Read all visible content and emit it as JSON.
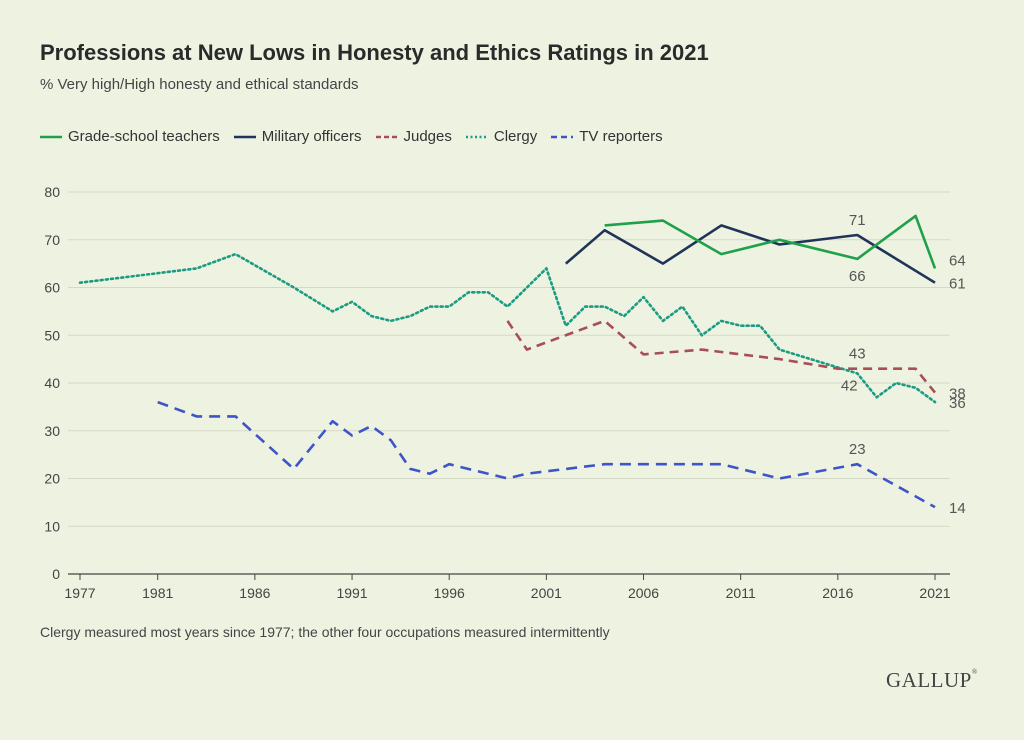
{
  "title": "Professions at New Lows in Honesty and Ethics Ratings in 2021",
  "subtitle": "% Very high/High honesty and ethical standards",
  "footnote": "Clergy measured most years since 1977; the other four occupations measured intermittently",
  "logo": "GALLUP",
  "logo_mark": "®",
  "chart_data": {
    "type": "line",
    "title": "Professions at New Lows in Honesty and Ethics Ratings in 2021",
    "xlabel": "",
    "ylabel": "",
    "xlim": [
      1977,
      2021
    ],
    "ylim": [
      0,
      80
    ],
    "y_ticks": [
      "0",
      "10",
      "20",
      "30",
      "40",
      "50",
      "60",
      "70",
      "80"
    ],
    "x_ticks": [
      "1977",
      "1981",
      "1986",
      "1991",
      "1996",
      "2001",
      "2006",
      "2011",
      "2016",
      "2021"
    ],
    "grid": "horizontal",
    "legend_position": "top-left",
    "series": [
      {
        "name": "Grade-school teachers",
        "color": "#1fa04a",
        "style": "solid",
        "points": [
          [
            2004,
            73
          ],
          [
            2007,
            74
          ],
          [
            2010,
            67
          ],
          [
            2013,
            70
          ],
          [
            2017,
            66
          ],
          [
            2020,
            75
          ],
          [
            2021,
            64
          ]
        ]
      },
      {
        "name": "Military officers",
        "color": "#1f3458",
        "style": "solid",
        "points": [
          [
            2002,
            65
          ],
          [
            2004,
            72
          ],
          [
            2007,
            65
          ],
          [
            2010,
            73
          ],
          [
            2013,
            69
          ],
          [
            2017,
            71
          ],
          [
            2021,
            61
          ]
        ]
      },
      {
        "name": "Judges",
        "color": "#a84e56",
        "style": "dashed",
        "points": [
          [
            1999,
            53
          ],
          [
            2000,
            47
          ],
          [
            2004,
            53
          ],
          [
            2006,
            46
          ],
          [
            2009,
            47
          ],
          [
            2013,
            45
          ],
          [
            2016,
            43
          ],
          [
            2020,
            43
          ],
          [
            2021,
            38
          ]
        ]
      },
      {
        "name": "Clergy",
        "color": "#1a9b82",
        "style": "dotted",
        "points": [
          [
            1977,
            61
          ],
          [
            1981,
            63
          ],
          [
            1983,
            64
          ],
          [
            1985,
            67
          ],
          [
            1988,
            60
          ],
          [
            1990,
            55
          ],
          [
            1991,
            57
          ],
          [
            1992,
            54
          ],
          [
            1993,
            53
          ],
          [
            1994,
            54
          ],
          [
            1995,
            56
          ],
          [
            1996,
            56
          ],
          [
            1997,
            59
          ],
          [
            1998,
            59
          ],
          [
            1999,
            56
          ],
          [
            2000,
            60
          ],
          [
            2001,
            64
          ],
          [
            2002,
            52
          ],
          [
            2003,
            56
          ],
          [
            2004,
            56
          ],
          [
            2005,
            54
          ],
          [
            2006,
            58
          ],
          [
            2007,
            53
          ],
          [
            2008,
            56
          ],
          [
            2009,
            50
          ],
          [
            2010,
            53
          ],
          [
            2011,
            52
          ],
          [
            2012,
            52
          ],
          [
            2013,
            47
          ],
          [
            2017,
            42
          ],
          [
            2018,
            37
          ],
          [
            2019,
            40
          ],
          [
            2020,
            39
          ],
          [
            2021,
            36
          ]
        ]
      },
      {
        "name": "TV reporters",
        "color": "#3d55c9",
        "style": "dashed",
        "points": [
          [
            1981,
            36
          ],
          [
            1983,
            33
          ],
          [
            1985,
            33
          ],
          [
            1988,
            22
          ],
          [
            1990,
            32
          ],
          [
            1991,
            29
          ],
          [
            1992,
            31
          ],
          [
            1993,
            28
          ],
          [
            1994,
            22
          ],
          [
            1995,
            21
          ],
          [
            1996,
            23
          ],
          [
            1999,
            20
          ],
          [
            2000,
            21
          ],
          [
            2004,
            23
          ],
          [
            2010,
            23
          ],
          [
            2013,
            20
          ],
          [
            2017,
            23
          ],
          [
            2021,
            14
          ]
        ]
      }
    ],
    "annotations": [
      {
        "text": "71",
        "x": 2017,
        "y": 71,
        "pos": "above",
        "color": "#555"
      },
      {
        "text": "66",
        "x": 2017,
        "y": 66,
        "pos": "below",
        "color": "#555"
      },
      {
        "text": "64",
        "x": 2021,
        "y": 64,
        "pos": "right-up",
        "color": "#555"
      },
      {
        "text": "61",
        "x": 2021,
        "y": 61,
        "pos": "right",
        "color": "#555"
      },
      {
        "text": "43",
        "x": 2017,
        "y": 43,
        "pos": "above",
        "color": "#555"
      },
      {
        "text": "42",
        "x": 2017,
        "y": 42,
        "pos": "below-left",
        "color": "#555"
      },
      {
        "text": "38",
        "x": 2021,
        "y": 38,
        "pos": "right",
        "color": "#555"
      },
      {
        "text": "36",
        "x": 2021,
        "y": 36,
        "pos": "right",
        "color": "#555"
      },
      {
        "text": "23",
        "x": 2017,
        "y": 23,
        "pos": "above",
        "color": "#555"
      },
      {
        "text": "14",
        "x": 2021,
        "y": 14,
        "pos": "right",
        "color": "#555"
      }
    ]
  }
}
